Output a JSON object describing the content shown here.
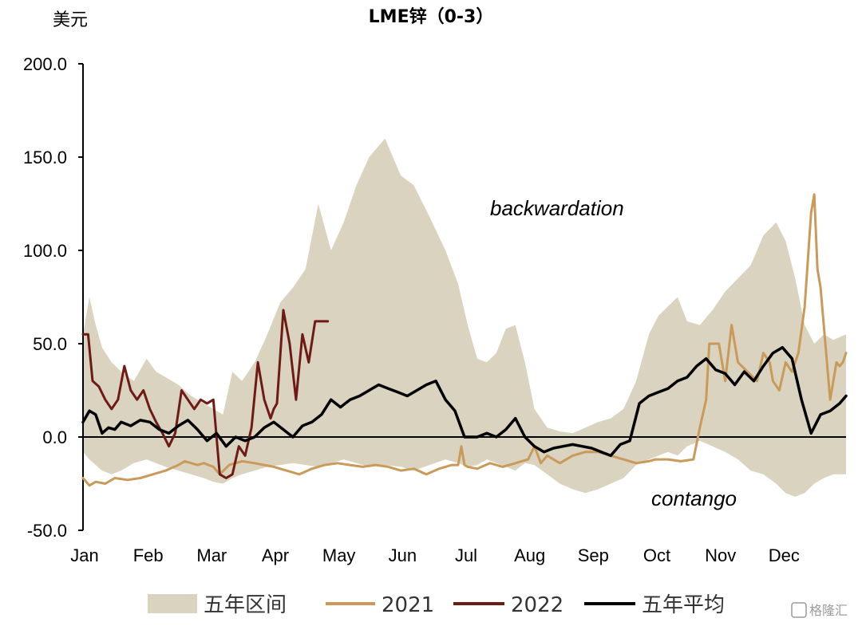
{
  "chart_data": {
    "type": "line",
    "title": "LME锌（0-3）",
    "ylabel": "美元",
    "ylim": [
      -50,
      200
    ],
    "yticks": [
      200,
      150,
      100,
      50,
      0,
      -50
    ],
    "ytick_labels": [
      "200.0",
      "150.0",
      "100.0",
      "50.0",
      "0.0",
      "-50.0"
    ],
    "months": [
      "Jan",
      "Feb",
      "Mar",
      "Apr",
      "May",
      "Jun",
      "Jul",
      "Aug",
      "Sep",
      "Oct",
      "Nov",
      "Dec"
    ],
    "x_range": [
      0,
      12
    ],
    "annotations": [
      "backwardation",
      "contango"
    ],
    "legend_position": "bottom",
    "colors": {
      "range": "#d9d3c0",
      "s2021": "#c99a5a",
      "s2022": "#6e1a16",
      "avg": "#000000"
    },
    "range": {
      "name": "五年区间",
      "x": [
        0,
        0.1,
        0.2,
        0.3,
        0.45,
        0.6,
        0.8,
        1.0,
        1.15,
        1.3,
        1.5,
        1.7,
        1.9,
        2.05,
        2.2,
        2.35,
        2.5,
        2.7,
        2.9,
        3.1,
        3.3,
        3.5,
        3.7,
        3.9,
        4.1,
        4.3,
        4.5,
        4.75,
        5.0,
        5.2,
        5.45,
        5.7,
        5.9,
        6.05,
        6.2,
        6.35,
        6.5,
        6.65,
        6.8,
        6.95,
        7.1,
        7.3,
        7.5,
        7.7,
        7.9,
        8.1,
        8.3,
        8.5,
        8.7,
        8.9,
        9.05,
        9.2,
        9.35,
        9.5,
        9.7,
        9.9,
        10.1,
        10.3,
        10.5,
        10.7,
        10.9,
        11.05,
        11.2,
        11.35,
        11.5,
        11.65,
        11.8,
        12.0
      ],
      "high": [
        55,
        75,
        60,
        48,
        40,
        35,
        30,
        42,
        35,
        32,
        28,
        22,
        18,
        15,
        12,
        35,
        30,
        40,
        55,
        72,
        80,
        90,
        125,
        100,
        115,
        135,
        150,
        160,
        140,
        135,
        118,
        100,
        82,
        60,
        42,
        40,
        45,
        58,
        60,
        40,
        15,
        5,
        3,
        2,
        5,
        8,
        10,
        15,
        30,
        55,
        65,
        70,
        75,
        62,
        60,
        68,
        78,
        85,
        92,
        108,
        115,
        105,
        85,
        60,
        50,
        55,
        52,
        55
      ],
      "low": [
        -8,
        -12,
        -15,
        -18,
        -20,
        -18,
        -14,
        -12,
        -14,
        -16,
        -18,
        -20,
        -22,
        -24,
        -25,
        -22,
        -20,
        -18,
        -16,
        -15,
        -14,
        -15,
        -16,
        -14,
        -12,
        -14,
        -16,
        -15,
        -16,
        -18,
        -15,
        -12,
        -14,
        -16,
        -15,
        -12,
        -14,
        -16,
        -18,
        -14,
        -15,
        -20,
        -25,
        -28,
        -30,
        -28,
        -25,
        -22,
        -15,
        -12,
        -10,
        -8,
        -10,
        -5,
        -2,
        -5,
        -8,
        -12,
        -18,
        -20,
        -25,
        -30,
        -32,
        -30,
        -25,
        -22,
        -20,
        -20
      ]
    },
    "series": [
      {
        "name": "2021",
        "key": "s2021",
        "x": [
          0,
          0.1,
          0.2,
          0.35,
          0.5,
          0.7,
          0.9,
          1.1,
          1.3,
          1.5,
          1.6,
          1.8,
          1.9,
          2.05,
          2.15,
          2.3,
          2.5,
          2.7,
          2.85,
          3.0,
          3.2,
          3.4,
          3.6,
          3.8,
          4.0,
          4.2,
          4.4,
          4.6,
          4.8,
          5.0,
          5.2,
          5.4,
          5.6,
          5.8,
          5.9,
          5.95,
          6.0,
          6.05,
          6.2,
          6.4,
          6.6,
          6.8,
          7.0,
          7.1,
          7.2,
          7.3,
          7.5,
          7.7,
          7.9,
          8.1,
          8.3,
          8.5,
          8.7,
          8.9,
          9.0,
          9.2,
          9.4,
          9.6,
          9.7,
          9.8,
          9.85,
          9.9,
          10.0,
          10.1,
          10.2,
          10.3,
          10.45,
          10.6,
          10.7,
          10.8,
          10.85,
          10.95,
          11.05,
          11.15,
          11.25,
          11.35,
          11.45,
          11.5,
          11.55,
          11.6,
          11.65,
          11.7,
          11.75,
          11.8,
          11.85,
          11.9,
          11.95,
          12.0
        ],
        "y": [
          -22,
          -26,
          -24,
          -25,
          -22,
          -23,
          -22,
          -20,
          -18,
          -15,
          -13,
          -15,
          -14,
          -16,
          -20,
          -15,
          -13,
          -14,
          -15,
          -16,
          -18,
          -20,
          -17,
          -15,
          -14,
          -15,
          -16,
          -15,
          -16,
          -18,
          -17,
          -20,
          -17,
          -15,
          -15,
          -5,
          -15,
          -16,
          -17,
          -14,
          -16,
          -14,
          -12,
          -5,
          -14,
          -10,
          -14,
          -10,
          -8,
          -8,
          -10,
          -12,
          -14,
          -13,
          -12,
          -12,
          -13,
          -12,
          5,
          20,
          50,
          50,
          50,
          30,
          60,
          40,
          35,
          30,
          45,
          40,
          30,
          25,
          40,
          35,
          45,
          70,
          120,
          130,
          90,
          80,
          60,
          40,
          20,
          30,
          40,
          38,
          40,
          45
        ]
      },
      {
        "name": "2022",
        "key": "s2022",
        "x": [
          0,
          0.08,
          0.15,
          0.25,
          0.35,
          0.45,
          0.55,
          0.65,
          0.75,
          0.85,
          0.95,
          1.05,
          1.15,
          1.25,
          1.35,
          1.45,
          1.55,
          1.65,
          1.75,
          1.85,
          1.95,
          2.05,
          2.15,
          2.25,
          2.35,
          2.45,
          2.55,
          2.65,
          2.75,
          2.85,
          2.95,
          3.0,
          3.05,
          3.15,
          3.25,
          3.35,
          3.45,
          3.55,
          3.65,
          3.75,
          3.85
        ],
        "y": [
          55,
          55,
          30,
          27,
          20,
          15,
          20,
          38,
          25,
          20,
          25,
          15,
          8,
          2,
          -5,
          2,
          25,
          20,
          15,
          20,
          18,
          20,
          -20,
          -22,
          -20,
          -5,
          -10,
          5,
          40,
          20,
          10,
          15,
          18,
          68,
          50,
          20,
          55,
          40,
          62,
          62,
          62
        ]
      },
      {
        "name": "五年平均",
        "key": "avg",
        "x": [
          0,
          0.1,
          0.2,
          0.3,
          0.4,
          0.5,
          0.6,
          0.75,
          0.9,
          1.05,
          1.2,
          1.35,
          1.5,
          1.65,
          1.8,
          1.95,
          2.1,
          2.25,
          2.4,
          2.55,
          2.7,
          2.85,
          3.0,
          3.15,
          3.3,
          3.45,
          3.6,
          3.75,
          3.9,
          4.05,
          4.2,
          4.35,
          4.5,
          4.65,
          4.8,
          4.95,
          5.1,
          5.25,
          5.4,
          5.55,
          5.7,
          5.85,
          6.0,
          6.1,
          6.2,
          6.35,
          6.5,
          6.65,
          6.8,
          6.95,
          7.1,
          7.25,
          7.4,
          7.55,
          7.7,
          7.85,
          8.0,
          8.15,
          8.3,
          8.45,
          8.6,
          8.75,
          8.9,
          9.05,
          9.2,
          9.35,
          9.5,
          9.65,
          9.8,
          9.95,
          10.1,
          10.25,
          10.4,
          10.55,
          10.7,
          10.85,
          11.0,
          11.15,
          11.3,
          11.45,
          11.6,
          11.75,
          11.9,
          12.0
        ],
        "y": [
          8,
          14,
          12,
          2,
          5,
          4,
          8,
          6,
          9,
          8,
          4,
          2,
          6,
          9,
          4,
          -2,
          2,
          -5,
          0,
          -2,
          0,
          5,
          8,
          4,
          0,
          6,
          8,
          12,
          20,
          16,
          20,
          22,
          25,
          28,
          26,
          24,
          22,
          25,
          28,
          30,
          20,
          14,
          0,
          0,
          0,
          2,
          0,
          4,
          10,
          0,
          -5,
          -8,
          -6,
          -5,
          -4,
          -5,
          -6,
          -8,
          -10,
          -4,
          -2,
          18,
          22,
          24,
          26,
          30,
          32,
          38,
          42,
          36,
          34,
          28,
          35,
          30,
          38,
          45,
          48,
          42,
          20,
          2,
          12,
          14,
          18,
          22
        ]
      }
    ],
    "legend": {
      "range": "五年区间",
      "s2021": "2021",
      "s2022": "2022",
      "avg": "五年平均"
    }
  },
  "watermark": "格隆汇"
}
